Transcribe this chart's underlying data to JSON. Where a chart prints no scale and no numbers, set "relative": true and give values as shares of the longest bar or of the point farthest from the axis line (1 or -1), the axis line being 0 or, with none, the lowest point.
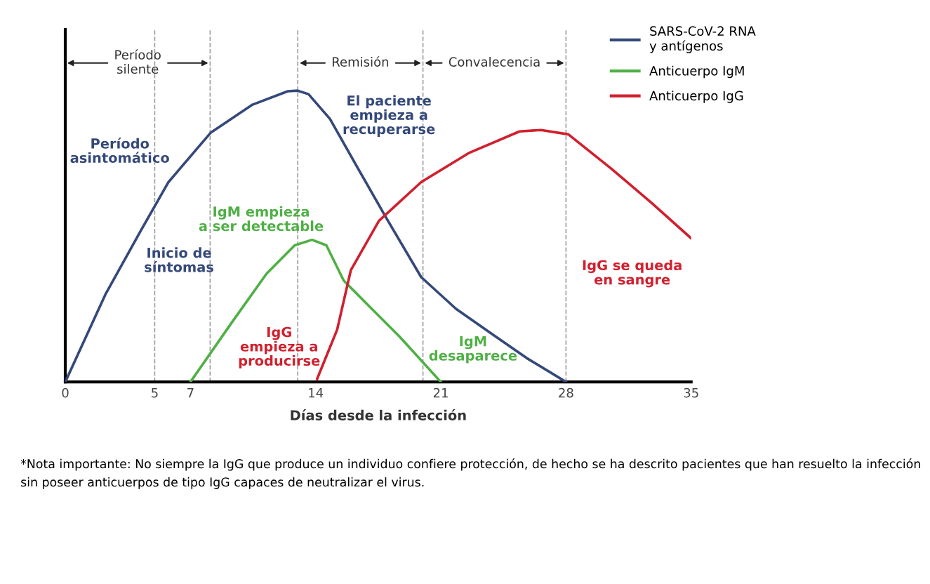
{
  "chart_data": {
    "type": "line",
    "relative": true,
    "xlabel": "Días desde la infección",
    "xlim": [
      0,
      35
    ],
    "xticks": [
      0,
      5,
      7,
      14,
      21,
      28,
      35
    ],
    "grid": false,
    "legend": "top right",
    "line_style": "solid",
    "marker": "none",
    "series": [
      {
        "name": "SARS-CoV-2 RNA\ny antígenos",
        "color": "#34497a",
        "x": [
          0,
          2.24,
          4.2,
          5.77,
          8.12,
          10.47,
          12.44,
          13.0,
          13.6,
          14.8,
          16.36,
          17.93,
          19.9,
          21.85,
          23.8,
          25.8,
          28
        ],
        "values": [
          0,
          0.3,
          0.517,
          0.686,
          0.855,
          0.952,
          0.998,
          1.0,
          0.988,
          0.903,
          0.734,
          0.565,
          0.36,
          0.251,
          0.167,
          0.082,
          0
        ]
      },
      {
        "name": "Anticuerpo IgM",
        "color": "#4fb045",
        "x": [
          7,
          9.3,
          11.26,
          12.83,
          13.8,
          14.6,
          15.57,
          17.14,
          18.7,
          21
        ],
        "values": [
          0,
          0.203,
          0.372,
          0.469,
          0.488,
          0.469,
          0.348,
          0.251,
          0.155,
          0
        ]
      },
      {
        "name": "Anticuerpo IgG",
        "color": "#d0202e",
        "x": [
          14.08,
          15.2,
          15.97,
          17.54,
          19.9,
          22.6,
          25.4,
          26.6,
          28.13,
          30.5,
          32.8,
          35
        ],
        "values": [
          0.01,
          0.179,
          0.384,
          0.553,
          0.686,
          0.787,
          0.86,
          0.865,
          0.85,
          0.734,
          0.614,
          0.493
        ]
      }
    ],
    "ref_lines": [
      {
        "axis": "x",
        "value": 5,
        "color": "#9e9e9e",
        "line_style": "dashed"
      },
      {
        "axis": "x",
        "value": 8.1,
        "color": "#9e9e9e",
        "line_style": "dashed"
      },
      {
        "axis": "x",
        "value": 13,
        "color": "#9e9e9e",
        "line_style": "dashed"
      },
      {
        "axis": "x",
        "value": 20,
        "color": "#9e9e9e",
        "line_style": "dashed"
      },
      {
        "axis": "x",
        "value": 28,
        "color": "#9e9e9e",
        "line_style": "dashed"
      }
    ],
    "annotations": [
      "Período\nasintomático",
      "Inicio de\nsíntomas",
      "El paciente\nempieza a\nrecuperarse",
      "IgM empieza\na ser detectable",
      "IgG\nempieza a\nproducirse",
      "IgM\ndesaparece",
      "IgG se queda\nen sangre",
      "Período\nsilente",
      "Remisión",
      "Convalecencia",
      "*Nota importante: No siempre la IgG que produce un individuo confiere protección, de hecho se ha descrito pacientes que han resuelto la infección sin poseer anticuerpos de tipo IgG capaces de neutralizar el virus."
    ]
  }
}
